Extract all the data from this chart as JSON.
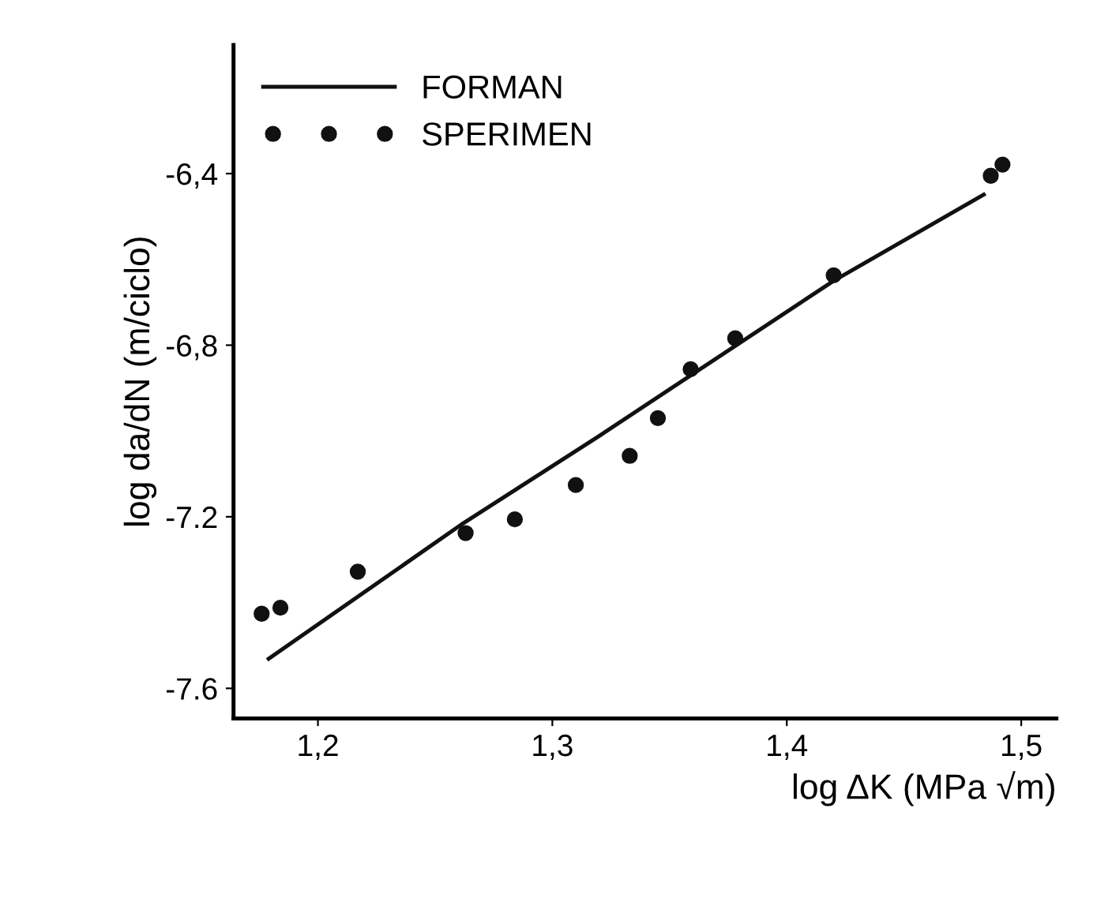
{
  "chart_data": {
    "type": "scatter",
    "xlabel": "log ΔK (MPa √m)",
    "ylabel": "log da/dN (m/ciclo)",
    "xlim": [
      1.164,
      1.515
    ],
    "ylim": [
      -7.67,
      -6.1
    ],
    "xticks": [
      {
        "value": 1.2,
        "label": "1,2"
      },
      {
        "value": 1.3,
        "label": "1,3"
      },
      {
        "value": 1.4,
        "label": "1,4"
      },
      {
        "value": 1.5,
        "label": "1,5"
      }
    ],
    "yticks": [
      {
        "value": -6.4,
        "label": "-6,4"
      },
      {
        "value": -6.8,
        "label": "-6,8"
      },
      {
        "value": -7.2,
        "label": "-7.2"
      },
      {
        "value": -7.6,
        "label": "-7.6"
      }
    ],
    "legend": "top left",
    "grid": false,
    "series": [
      {
        "name": "FORMAN",
        "type": "line",
        "color": "#111111",
        "marker": "none",
        "line_style": "solid",
        "x": [
          1.179,
          1.262,
          1.319,
          1.42,
          1.484
        ],
        "values": [
          -7.531,
          -7.215,
          -7.015,
          -6.65,
          -6.449
        ]
      },
      {
        "name": "SPERIMEN",
        "color": "#111111",
        "marker": "circle",
        "x": [
          1.176,
          1.184,
          1.217,
          1.263,
          1.284,
          1.31,
          1.333,
          1.345,
          1.359,
          1.378,
          1.42,
          1.487,
          1.492
        ],
        "values": [
          -7.426,
          -7.412,
          -7.328,
          -7.238,
          -7.206,
          -7.126,
          -7.058,
          -6.97,
          -6.856,
          -6.784,
          -6.637,
          -6.405,
          -6.379
        ]
      }
    ]
  }
}
